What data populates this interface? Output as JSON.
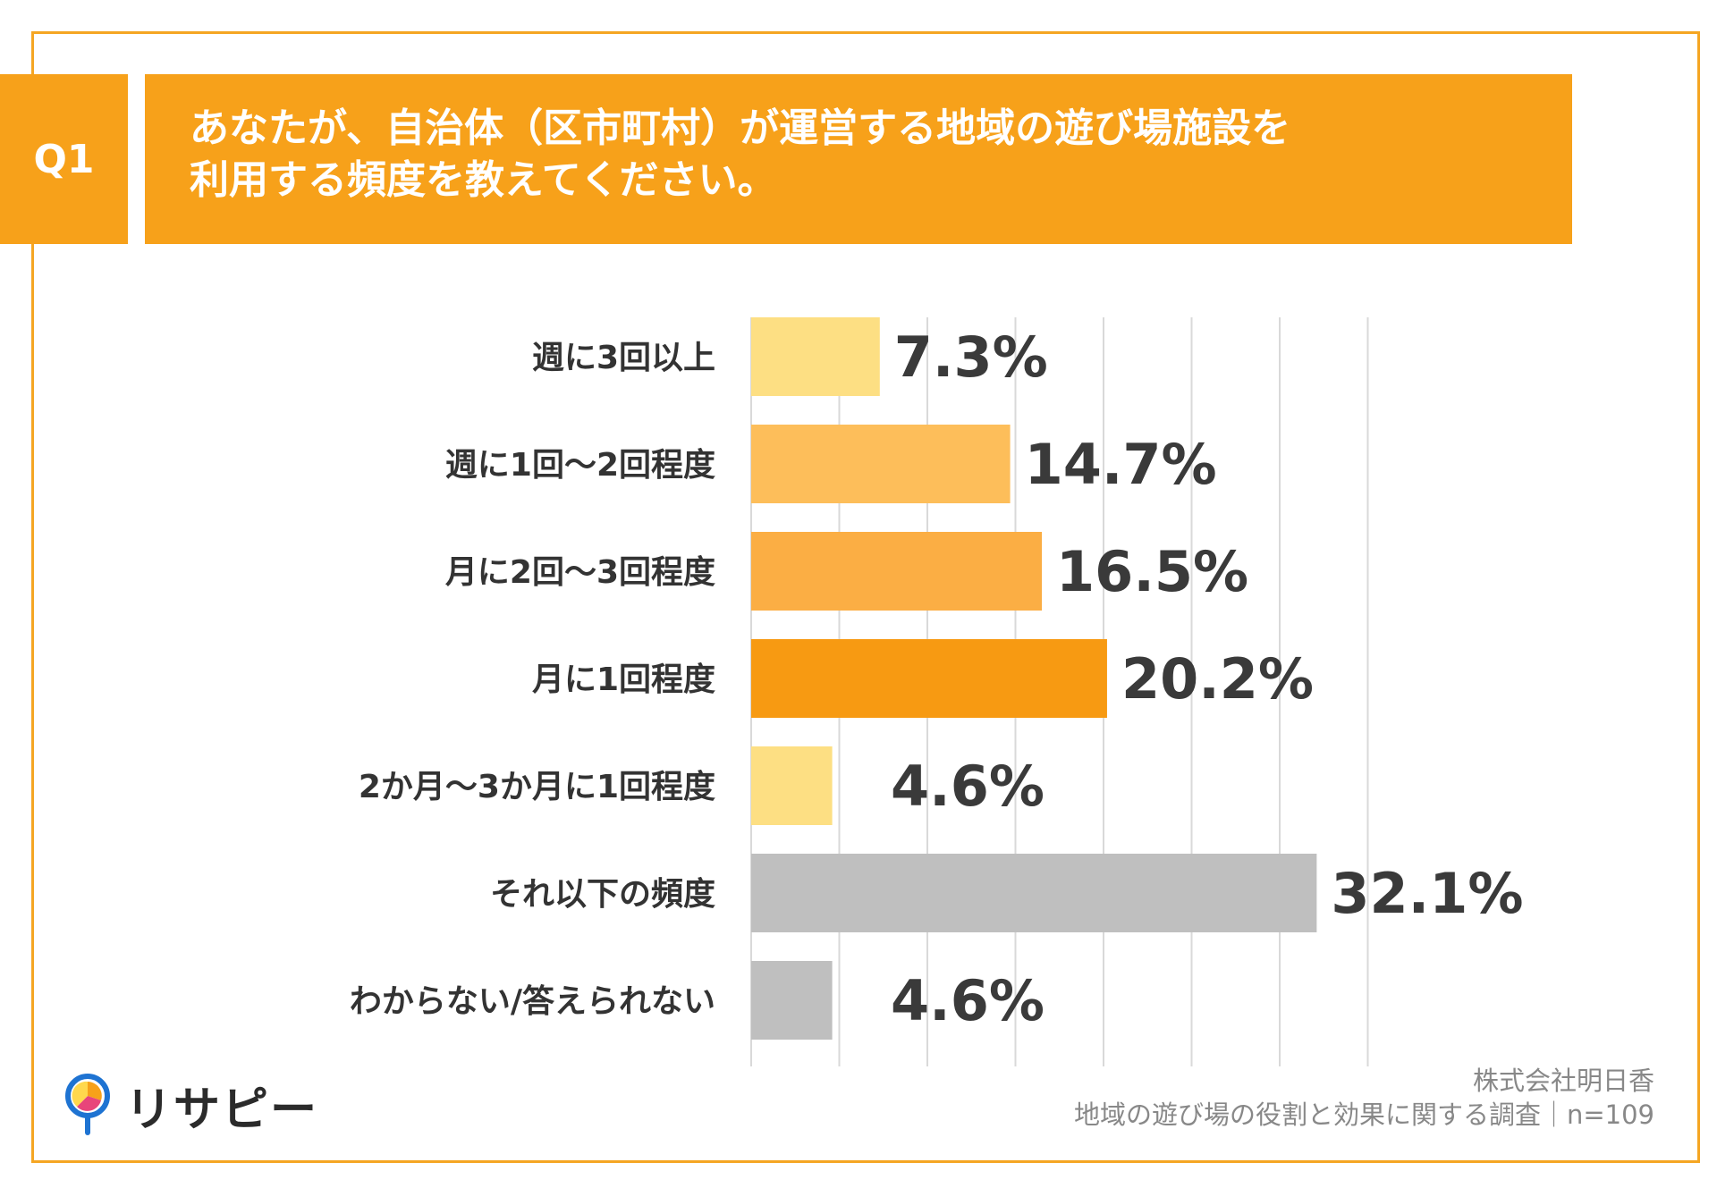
{
  "question": {
    "badge": "Q1",
    "line1": "あなたが、自治体（区市町村）が運営する地域の遊び場施設を",
    "line2": "利用する頻度を教えてください。"
  },
  "chart_data": {
    "type": "bar",
    "orientation": "horizontal",
    "categories": [
      "週に3回以上",
      "週に1回～2回程度",
      "月に2回～3回程度",
      "月に1回程度",
      "2か月～3か月に1回程度",
      "それ以下の頻度",
      "わからない/答えられない"
    ],
    "values": [
      7.3,
      14.7,
      16.5,
      20.2,
      4.6,
      32.1,
      4.6
    ],
    "value_labels": [
      "7.3%",
      "14.7%",
      "16.5%",
      "20.2%",
      "4.6%",
      "32.1%",
      "4.6%"
    ],
    "colors": [
      "#FDDF83",
      "#FDBE5A",
      "#FBAE44",
      "#F79A12",
      "#FDDF83",
      "#BFBFBF",
      "#BFBFBF"
    ],
    "xlim": [
      0,
      35
    ],
    "grid": true,
    "unit": "%"
  },
  "logo": {
    "text": "リサピー",
    "icon": "pin-pie-icon"
  },
  "source": {
    "company": "株式会社明日香",
    "survey": "地域の遊び場の役割と効果に関する調査｜n=109"
  },
  "colors": {
    "accent": "#F7A11A",
    "frame": "#F5A623"
  }
}
